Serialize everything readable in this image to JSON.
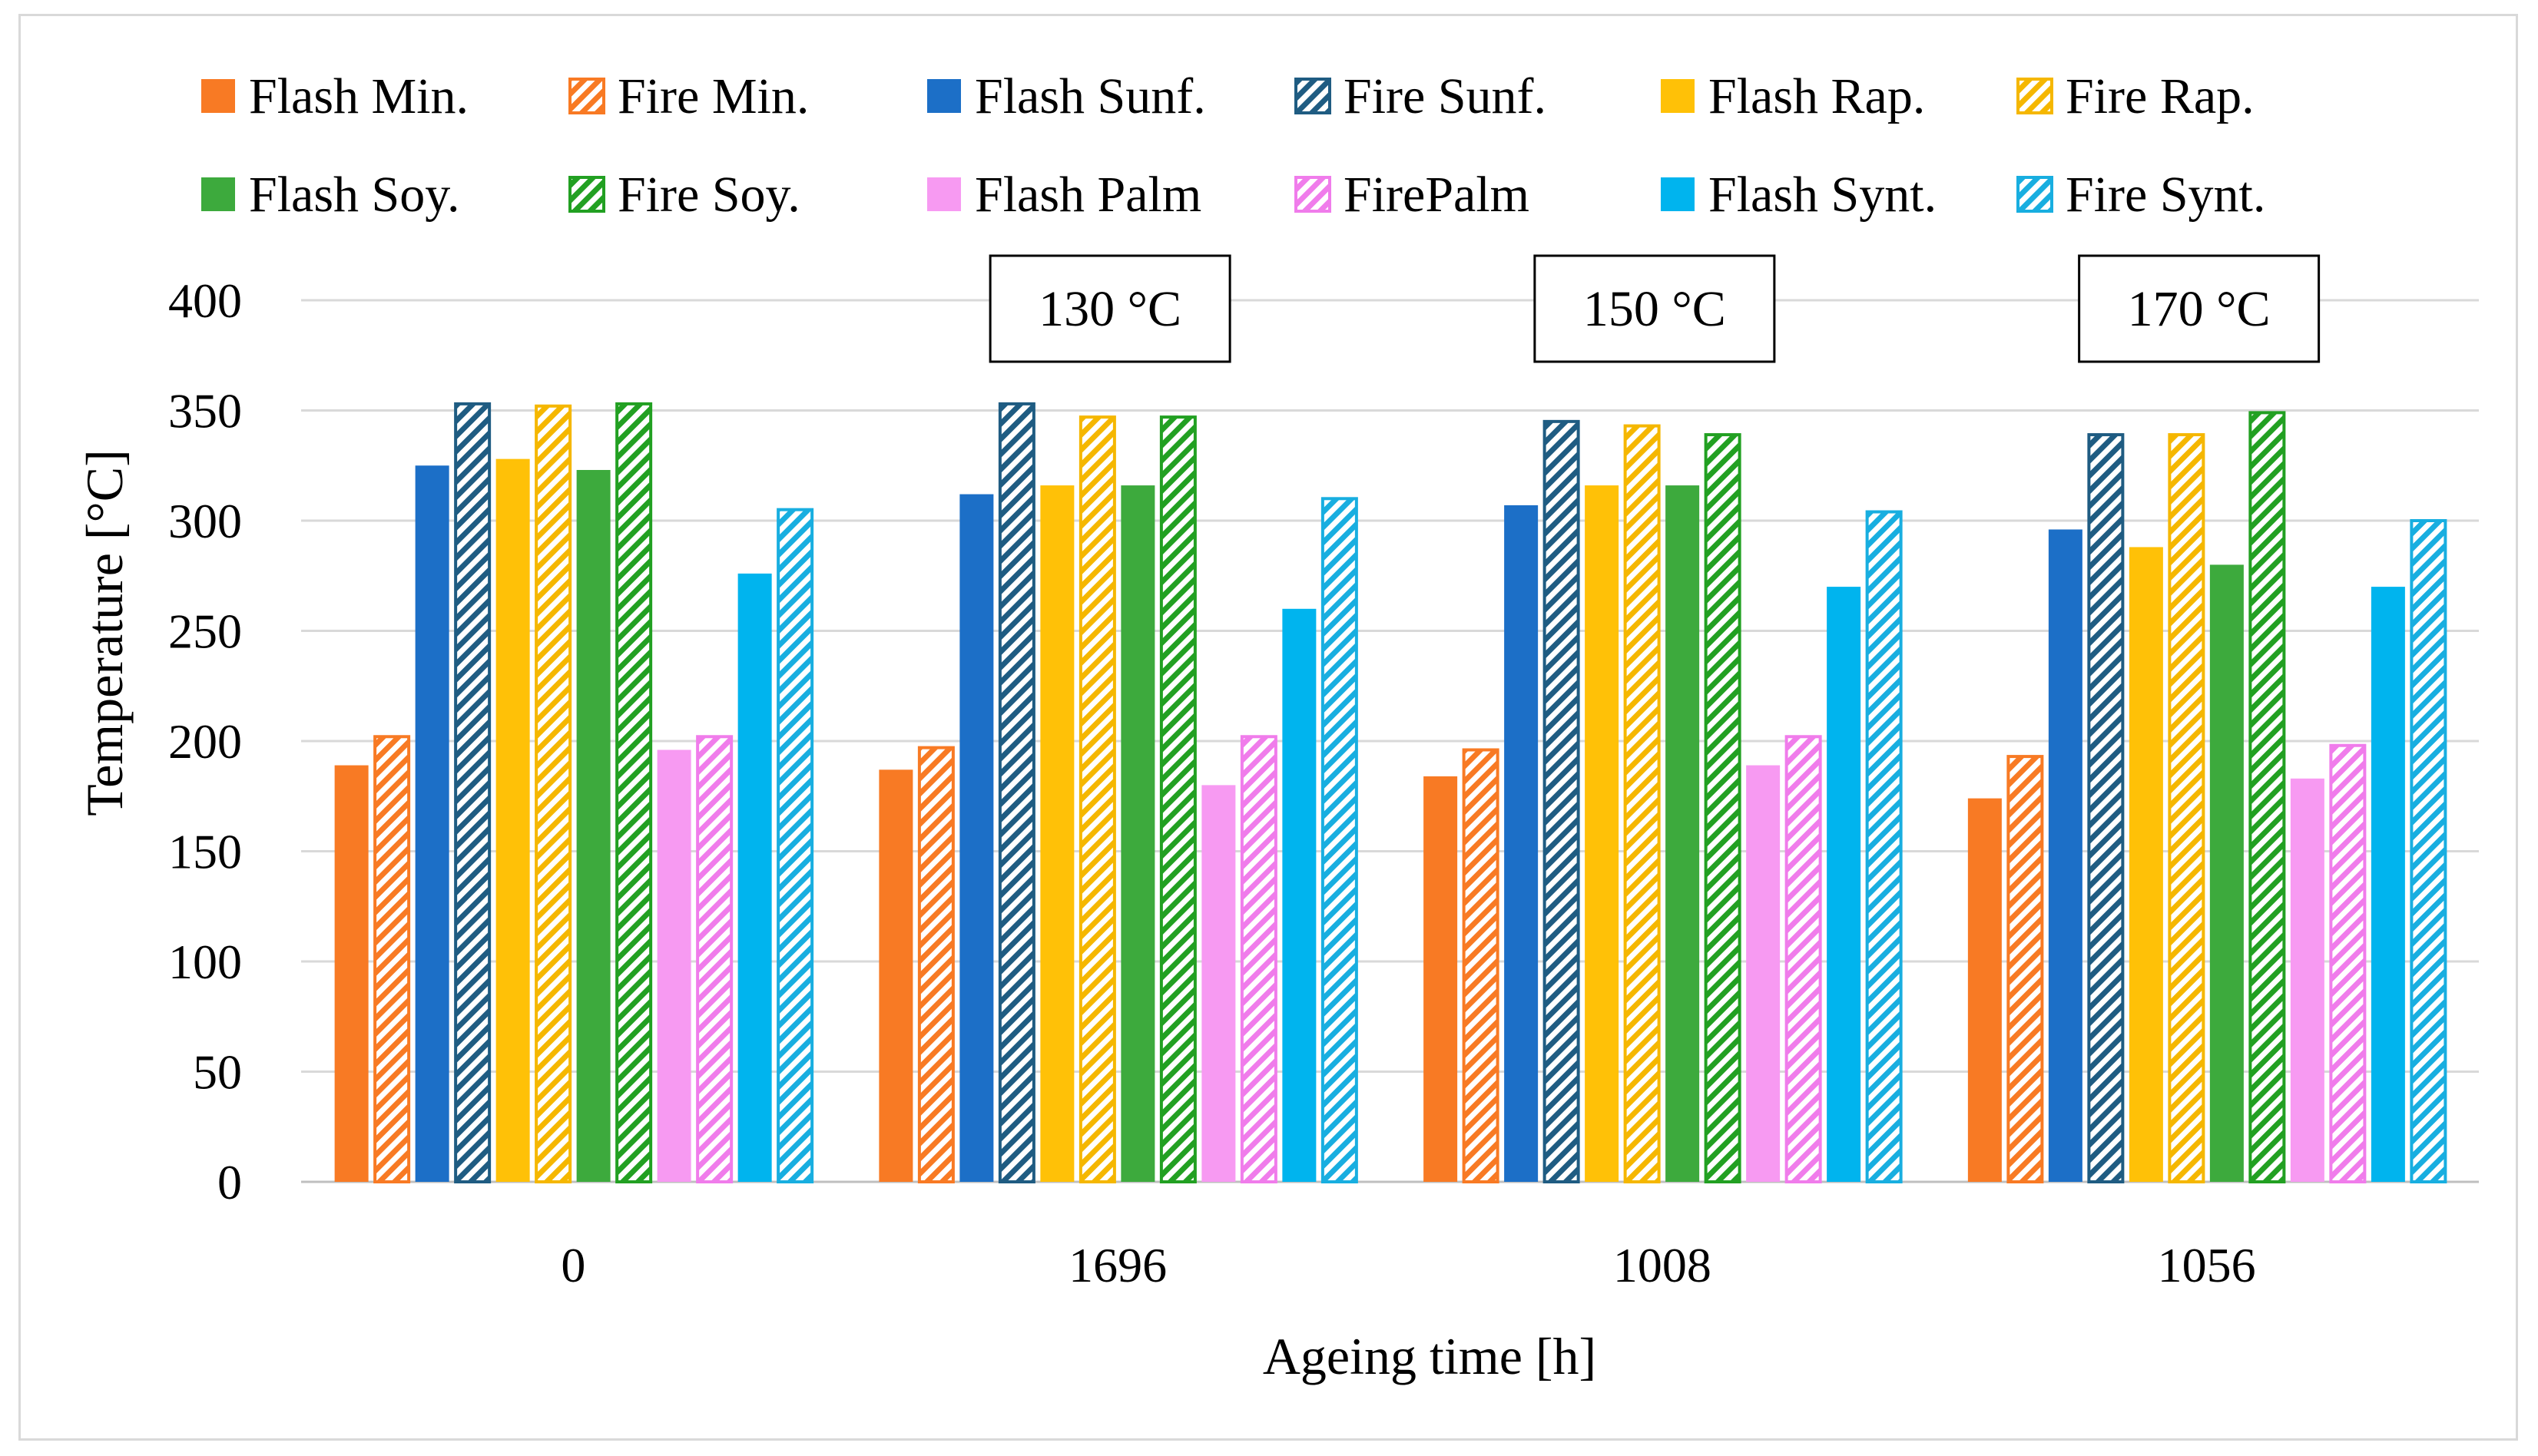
{
  "chart_data": {
    "type": "bar",
    "title": "",
    "xlabel": "Ageing time [h]",
    "ylabel": "Temperature [°C]",
    "ylim": [
      0,
      400
    ],
    "yticks": [
      0,
      50,
      100,
      150,
      200,
      250,
      300,
      350,
      400
    ],
    "grid": "horizontal",
    "legend_position": "top",
    "categories": [
      "0",
      "1696",
      "1008",
      "1056"
    ],
    "annotations": [
      {
        "text": "130 °C",
        "category": "1696"
      },
      {
        "text": "150 °C",
        "category": "1008"
      },
      {
        "text": "170 °C",
        "category": "1056"
      }
    ],
    "series": [
      {
        "name": "Flash Min.",
        "color": "#F87A24",
        "pattern": "solid",
        "values": [
          189,
          187,
          184,
          174
        ]
      },
      {
        "name": "Fire Min.",
        "color": "#F87A24",
        "pattern": "hatch",
        "values": [
          202,
          197,
          196,
          193
        ]
      },
      {
        "name": "Flash Sunf.",
        "color": "#1C6FC7",
        "pattern": "solid",
        "values": [
          325,
          312,
          307,
          296
        ]
      },
      {
        "name": "Fire Sunf.",
        "color": "#1F5C82",
        "pattern": "hatch",
        "values": [
          353,
          353,
          345,
          339
        ]
      },
      {
        "name": "Flash Rap.",
        "color": "#FFC107",
        "pattern": "solid",
        "values": [
          328,
          316,
          316,
          288
        ]
      },
      {
        "name": "Fire Rap.",
        "color": "#F5B700",
        "pattern": "hatch",
        "values": [
          352,
          347,
          343,
          339
        ]
      },
      {
        "name": "Flash Soy.",
        "color": "#3DAA3D",
        "pattern": "solid",
        "values": [
          323,
          316,
          316,
          280
        ]
      },
      {
        "name": "Fire Soy.",
        "color": "#22A022",
        "pattern": "hatch",
        "values": [
          353,
          347,
          339,
          349
        ]
      },
      {
        "name": "Flash Palm",
        "color": "#F79AF2",
        "pattern": "solid",
        "values": [
          196,
          180,
          189,
          183
        ]
      },
      {
        "name": "FirePalm",
        "color": "#F07CEB",
        "pattern": "hatch",
        "values": [
          202,
          202,
          202,
          198
        ]
      },
      {
        "name": "Flash Synt.",
        "color": "#00B4EE",
        "pattern": "solid",
        "values": [
          276,
          260,
          270,
          270
        ]
      },
      {
        "name": "Fire Synt.",
        "color": "#18AEE0",
        "pattern": "hatch",
        "values": [
          305,
          310,
          304,
          300
        ]
      }
    ]
  }
}
